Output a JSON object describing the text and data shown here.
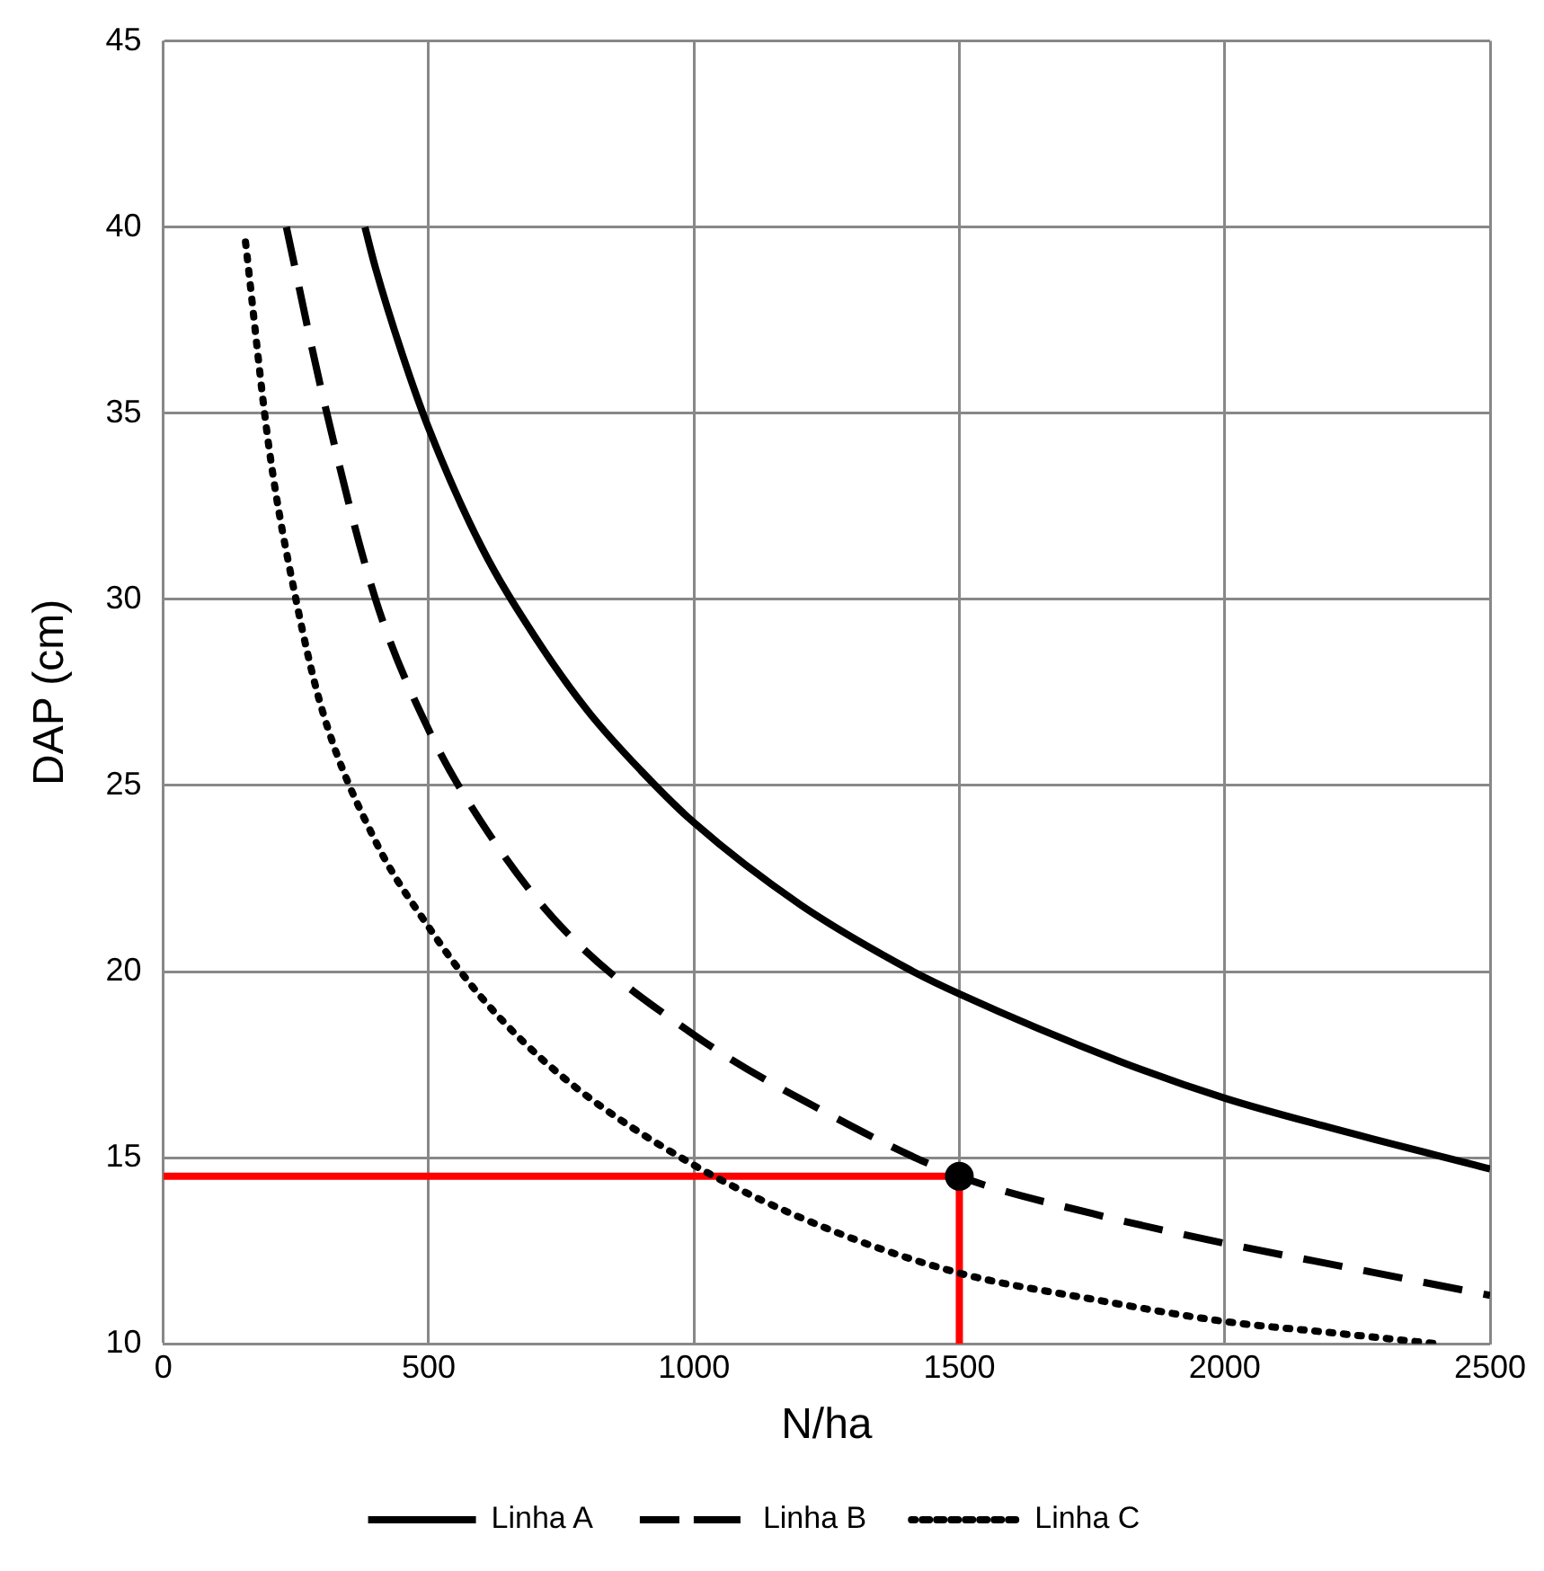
{
  "chart_data": {
    "type": "line",
    "xlabel": "N/ha",
    "ylabel": "DAP (cm)",
    "xlim": [
      0,
      2500
    ],
    "xticks": [
      0,
      500,
      1000,
      1500,
      2000,
      2500
    ],
    "ylim": [
      10,
      45
    ],
    "yticks": [
      10,
      15,
      20,
      25,
      30,
      35,
      40,
      45
    ],
    "grid": true,
    "legend": "bottom",
    "marker": "none",
    "series": [
      {
        "name": "Linha A",
        "color": "#000000",
        "line_style": "solid",
        "x": [
          380,
          400,
          450,
          500,
          600,
          700,
          800,
          900,
          1000,
          1200,
          1400,
          1500,
          1800,
          2000,
          2200,
          2500
        ],
        "values": [
          40,
          38.9,
          36.6,
          34.6,
          31.4,
          29,
          27,
          25.4,
          24,
          21.8,
          20.1,
          19.4,
          17.6,
          16.6,
          15.8,
          14.7
        ]
      },
      {
        "name": "Linha B",
        "color": "#000000",
        "line_style": "dashed",
        "x": [
          232,
          300,
          400,
          500,
          600,
          750,
          1000,
          1250,
          1500,
          1750,
          2000,
          2250,
          2500
        ],
        "values": [
          40,
          35.5,
          30,
          26.5,
          24,
          21.2,
          18.3,
          16.2,
          14.5,
          13.5,
          12.7,
          12,
          11.3
        ]
      },
      {
        "name": "Linha C",
        "color": "#000000",
        "line_style": "dotted",
        "x": [
          155,
          200,
          250,
          300,
          400,
          500,
          600,
          750,
          1000,
          1250,
          1500,
          1750,
          2000,
          2200,
          2400
        ],
        "values": [
          39.6,
          34,
          30,
          27,
          23.5,
          21.2,
          19.3,
          17.2,
          14.8,
          13.1,
          11.9,
          11.2,
          10.6,
          10.3,
          10
        ]
      },
      {
        "color": "#ff0000",
        "line_style": "solid",
        "x": [
          0,
          1500,
          1500
        ],
        "values": [
          14.5,
          14.5,
          10
        ]
      },
      {
        "type": "scatter",
        "color": "#000000",
        "marker": "circle",
        "x": [
          1500
        ],
        "values": [
          14.5
        ]
      }
    ]
  }
}
